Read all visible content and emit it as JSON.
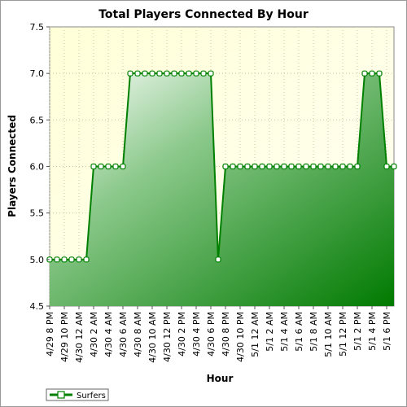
{
  "chart_data": {
    "type": "area",
    "title": "Total Players Connected By Hour",
    "xlabel": "Hour",
    "ylabel": "Players Connected",
    "ylim": [
      4.5,
      7.5
    ],
    "yticks": [
      4.5,
      5.0,
      5.5,
      6.0,
      6.5,
      7.0,
      7.5
    ],
    "grid": true,
    "legend_placement": "bottom-left",
    "tick_labels": [
      "4/29 8 PM",
      "4/29 10 PM",
      "4/30 12 AM",
      "4/30 2 AM",
      "4/30 4 AM",
      "4/30 6 AM",
      "4/30 8 AM",
      "4/30 10 AM",
      "4/30 12 PM",
      "4/30 2 PM",
      "4/30 4 PM",
      "4/30 6 PM",
      "4/30 8 PM",
      "4/30 10 PM",
      "5/1 12 AM",
      "5/1 2 AM",
      "5/1 4 AM",
      "5/1 6 AM",
      "5/1 8 AM",
      "5/1 10 AM",
      "5/1 12 PM",
      "5/1 2 PM",
      "5/1 4 PM",
      "5/1 6 PM"
    ],
    "series": [
      {
        "name": "Surfers",
        "color": "#008000",
        "values": [
          5,
          5,
          5,
          5,
          5,
          5,
          6,
          6,
          6,
          6,
          6,
          7,
          7,
          7,
          7,
          7,
          7,
          7,
          7,
          7,
          7,
          7,
          7,
          5,
          6,
          6,
          6,
          6,
          6,
          6,
          6,
          6,
          6,
          6,
          6,
          6,
          6,
          6,
          6,
          6,
          6,
          6,
          6,
          7,
          7,
          7,
          6,
          6
        ]
      }
    ]
  },
  "colors": {
    "plot_background_top": "#ffffe0",
    "line": "#008000",
    "fill_light": "#ffffff",
    "fill_dark": "#008000"
  }
}
